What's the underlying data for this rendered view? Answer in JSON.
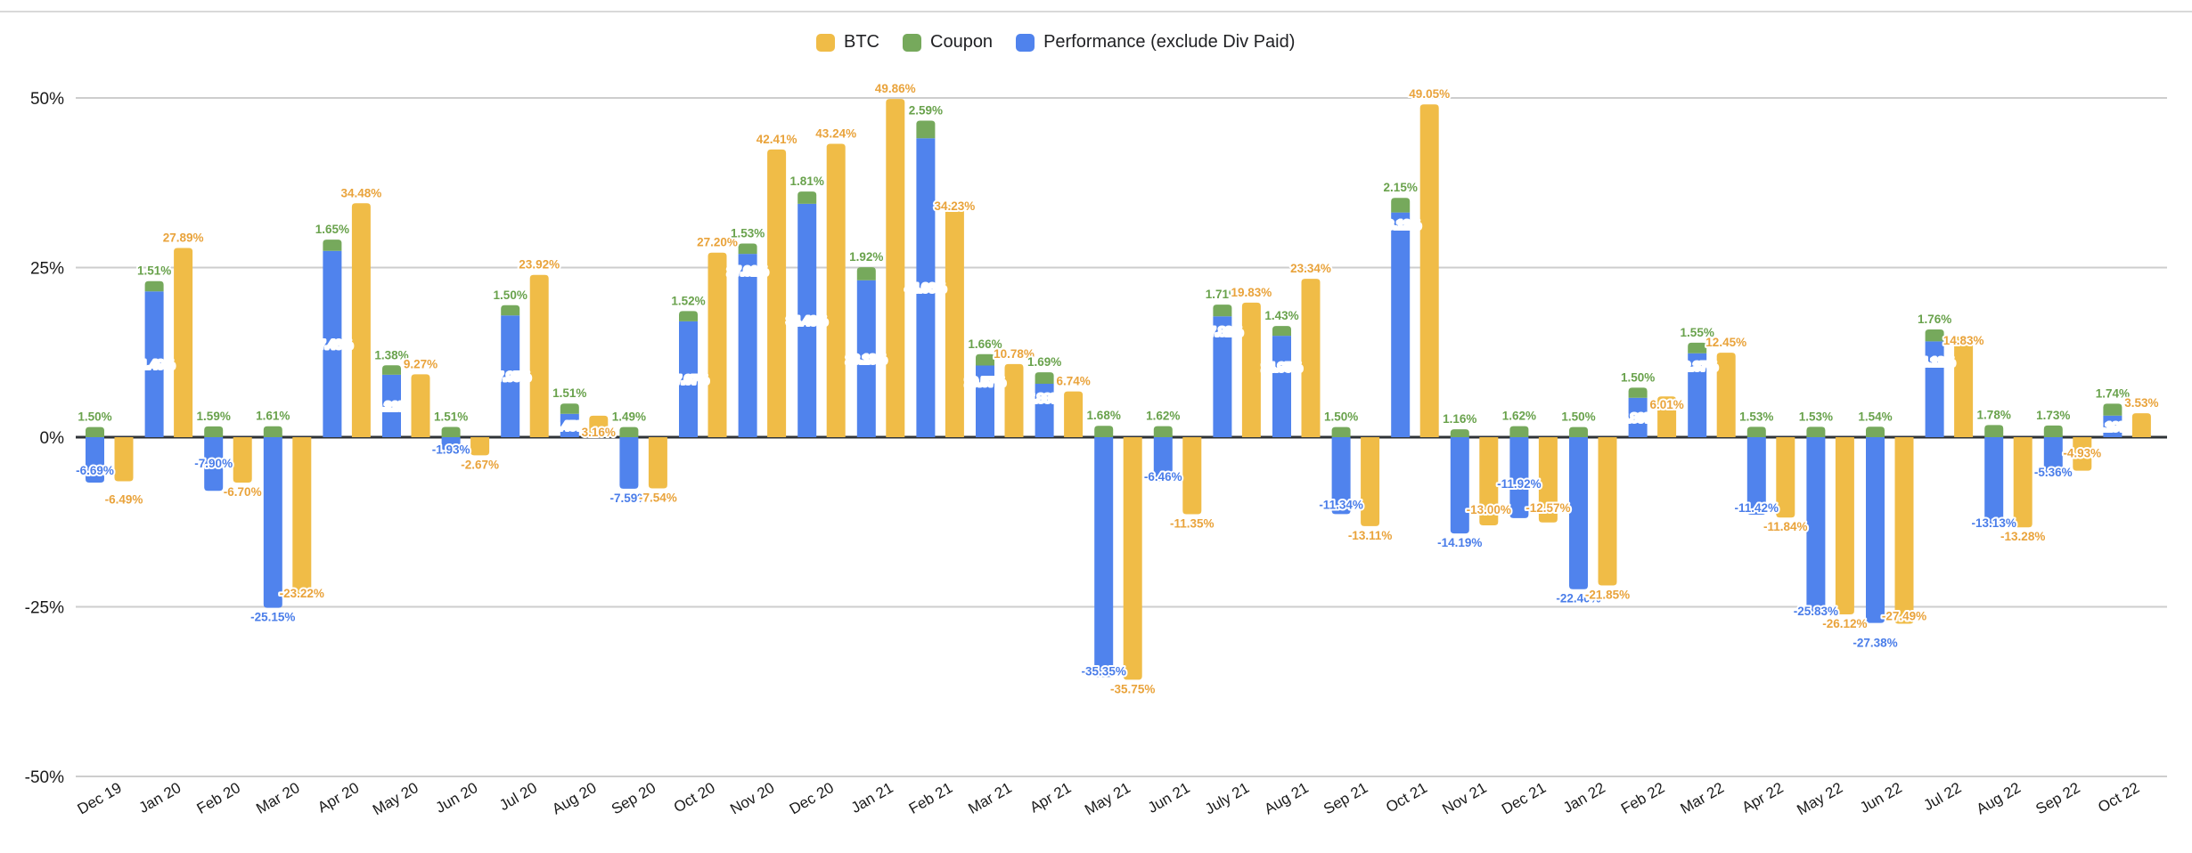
{
  "page": {
    "background": "#FFFFFF"
  },
  "colors": {
    "btc": "#F0BC47",
    "coupon": "#76A95C",
    "performance": "#5083ED",
    "btc_label": "#E9A33B",
    "coupon_label": "#69A24C",
    "performance_label": "#4A7DE9",
    "performance_label_inside": "#FFFFFF",
    "grid": "#CDCDCD",
    "zero_line": "#2F3337",
    "axis_text": "#1A1A1A",
    "top_border": "#D9D9D9"
  },
  "legend": {
    "items": [
      {
        "id": "btc",
        "label": "BTC"
      },
      {
        "id": "coupon",
        "label": "Coupon"
      },
      {
        "id": "performance",
        "label": "Performance (exclude Div Paid)"
      }
    ]
  },
  "chart_data": {
    "type": "bar",
    "title": "",
    "xlabel": "",
    "ylabel": "",
    "ylim": [
      -50,
      50
    ],
    "grid": true,
    "legend_position": "top",
    "y_ticks": [
      {
        "label": "50%",
        "value": 50
      },
      {
        "label": "25%",
        "value": 25
      },
      {
        "label": "0%",
        "value": 0
      },
      {
        "label": "-25%",
        "value": -25
      },
      {
        "label": "-50%",
        "value": -50
      }
    ],
    "categories": [
      "Dec 19",
      "Jan 20",
      "Feb 20",
      "Mar 20",
      "Apr 20",
      "May 20",
      "Jun 20",
      "Jul 20",
      "Aug 20",
      "Sep 20",
      "Oct 20",
      "Nov 20",
      "Dec 20",
      "Jan 21",
      "Feb 21",
      "Mar 21",
      "Apr 21",
      "May 21",
      "Jun 21",
      "July 21",
      "Aug 21",
      "Sep 21",
      "Oct 21",
      "Nov 21",
      "Dec 21",
      "Jan 22",
      "Feb 22",
      "Mar 22",
      "Apr 22",
      "May 22",
      "Jun 22",
      "Jul 22",
      "Aug 22",
      "Sep 22",
      "Oct 22"
    ],
    "series": [
      {
        "name": "Performance (exclude Div Paid)",
        "color_key": "performance",
        "stacking": "base",
        "values": [
          -6.69,
          21.49,
          -7.9,
          -25.15,
          27.46,
          9.21,
          -1.93,
          17.95,
          3.45,
          -7.59,
          17.07,
          27.01,
          34.4,
          23.13,
          44.06,
          10.57,
          7.88,
          -35.35,
          -6.46,
          17.82,
          14.95,
          -11.34,
          33.12,
          -14.19,
          -11.92,
          -22.4,
          5.8,
          12.37,
          -11.42,
          -25.83,
          -27.38,
          14.12,
          -13.13,
          -5.36,
          3.19
        ]
      },
      {
        "name": "Coupon",
        "color_key": "coupon",
        "stacking": "stacked-on-performance",
        "values": [
          1.5,
          1.51,
          1.59,
          1.61,
          1.65,
          1.38,
          1.51,
          1.5,
          1.51,
          1.49,
          1.52,
          1.53,
          1.81,
          1.92,
          2.59,
          1.66,
          1.69,
          1.68,
          1.62,
          1.71,
          1.43,
          1.5,
          2.15,
          1.16,
          1.62,
          1.5,
          1.5,
          1.55,
          1.53,
          1.53,
          1.54,
          1.76,
          1.78,
          1.73,
          1.74
        ]
      },
      {
        "name": "BTC",
        "color_key": "btc",
        "stacking": "separate",
        "values": [
          -6.49,
          27.89,
          -6.7,
          -23.22,
          34.48,
          9.27,
          -2.67,
          23.92,
          3.16,
          -7.54,
          27.2,
          42.41,
          43.24,
          49.86,
          34.23,
          10.78,
          6.74,
          -35.75,
          -11.35,
          19.83,
          23.34,
          -13.11,
          49.05,
          -13.0,
          -12.57,
          -21.85,
          6.01,
          12.45,
          -11.84,
          -26.12,
          -27.49,
          14.83,
          -13.28,
          -4.93,
          3.53
        ]
      }
    ],
    "label_offsets": {
      "performance": {
        "0": -24,
        "2": -41,
        "6": -11,
        "11": -84,
        "15": -22,
        "16": -14,
        "17": -17,
        "18": -15,
        "19": -51,
        "20": -22,
        "21": -21,
        "22": -113,
        "24": -49,
        "27": -33,
        "28": -18,
        "29": -12,
        "30": 12,
        "31": -31,
        "32": -14,
        "33": -12
      },
      "btc": {
        "0": 10,
        "3": -12,
        "8": 30,
        "14": 13,
        "23": -28,
        "24": -27,
        "26": 21,
        "30": -19,
        "31": 16,
        "33": -30
      }
    }
  }
}
